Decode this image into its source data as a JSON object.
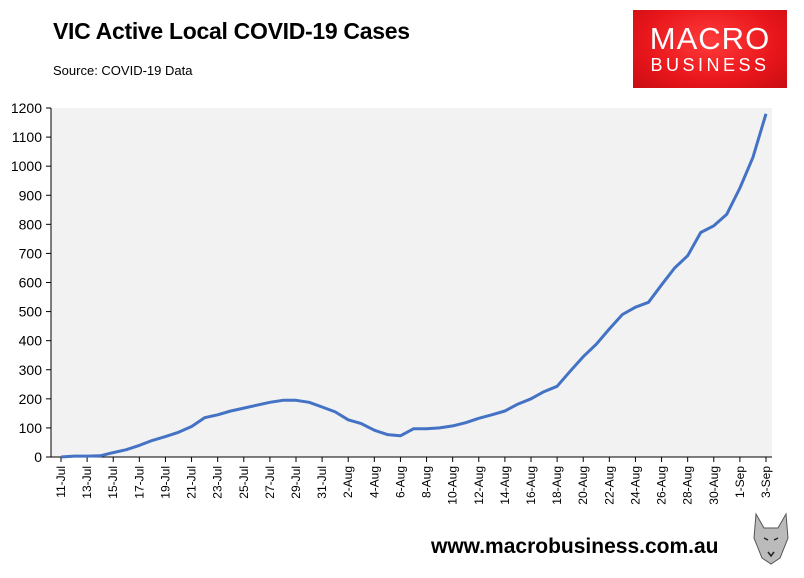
{
  "header": {
    "title": "VIC Active Local COVID-19 Cases",
    "source": "Source: COVID-19 Data"
  },
  "logo": {
    "line1": "MACRO",
    "line2": "BUSINESS"
  },
  "footer": {
    "url": "www.macrobusiness.com.au"
  },
  "colors": {
    "line": "#4472c4",
    "plot_bg": "#f2f2f2",
    "logo_red": "#e8161b"
  },
  "chart_data": {
    "type": "line",
    "title": "VIC Active Local COVID-19 Cases",
    "ylim": [
      0,
      1200
    ],
    "yticks": [
      0,
      100,
      200,
      300,
      400,
      500,
      600,
      700,
      800,
      900,
      1000,
      1100,
      1200
    ],
    "grid": false,
    "x": [
      "11-Jul",
      "12-Jul",
      "13-Jul",
      "14-Jul",
      "15-Jul",
      "16-Jul",
      "17-Jul",
      "18-Jul",
      "19-Jul",
      "20-Jul",
      "21-Jul",
      "22-Jul",
      "23-Jul",
      "24-Jul",
      "25-Jul",
      "26-Jul",
      "27-Jul",
      "28-Jul",
      "29-Jul",
      "30-Jul",
      "31-Jul",
      "1-Aug",
      "2-Aug",
      "3-Aug",
      "4-Aug",
      "5-Aug",
      "6-Aug",
      "7-Aug",
      "8-Aug",
      "9-Aug",
      "10-Aug",
      "11-Aug",
      "12-Aug",
      "13-Aug",
      "14-Aug",
      "15-Aug",
      "16-Aug",
      "17-Aug",
      "18-Aug",
      "19-Aug",
      "20-Aug",
      "21-Aug",
      "22-Aug",
      "23-Aug",
      "24-Aug",
      "25-Aug",
      "26-Aug",
      "27-Aug",
      "28-Aug",
      "29-Aug",
      "30-Aug",
      "31-Aug",
      "1-Sep",
      "2-Sep",
      "3-Sep"
    ],
    "xtick_labels": [
      "11-Jul",
      "13-Jul",
      "15-Jul",
      "17-Jul",
      "19-Jul",
      "21-Jul",
      "23-Jul",
      "25-Jul",
      "27-Jul",
      "29-Jul",
      "31-Jul",
      "2-Aug",
      "4-Aug",
      "6-Aug",
      "8-Aug",
      "10-Aug",
      "12-Aug",
      "14-Aug",
      "16-Aug",
      "18-Aug",
      "20-Aug",
      "22-Aug",
      "24-Aug",
      "26-Aug",
      "28-Aug",
      "30-Aug",
      "1-Sep",
      "3-Sep"
    ],
    "series": [
      {
        "values": [
          0,
          3,
          3,
          4,
          15,
          25,
          40,
          57,
          70,
          85,
          105,
          135,
          145,
          158,
          168,
          178,
          188,
          195,
          195,
          188,
          172,
          155,
          128,
          115,
          92,
          77,
          73,
          97,
          97,
          100,
          107,
          118,
          133,
          145,
          158,
          182,
          200,
          225,
          243,
          295,
          345,
          388,
          440,
          490,
          515,
          532,
          592,
          650,
          692,
          772,
          795,
          835,
          925,
          1030,
          1180
        ]
      }
    ]
  }
}
